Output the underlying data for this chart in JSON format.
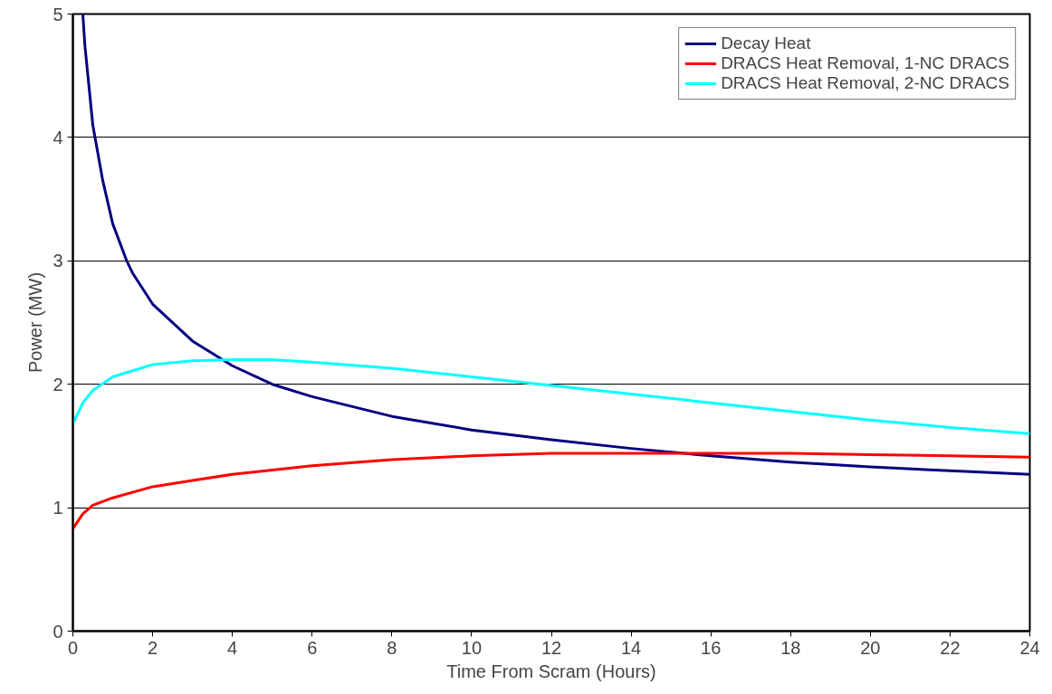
{
  "chart_data": {
    "type": "line",
    "xlabel": "Time From Scram (Hours)",
    "ylabel": "Power (MW)",
    "xlim": [
      0,
      24
    ],
    "xticks": [
      0,
      2,
      4,
      6,
      8,
      10,
      12,
      14,
      16,
      18,
      20,
      22,
      24
    ],
    "ylim": [
      0,
      5
    ],
    "yticks": [
      0,
      1,
      2,
      3,
      4,
      5
    ],
    "grid": "y",
    "legend": "top right",
    "marker": "none",
    "line_style": "solid",
    "series": [
      {
        "name": "Decay Heat",
        "color": "#000080",
        "x": [
          0.25,
          0.3,
          0.5,
          0.75,
          1,
          1.35,
          1.5,
          2,
          3,
          4,
          5,
          6,
          8,
          10,
          12,
          14,
          16,
          18,
          20,
          22,
          24
        ],
        "values": [
          5,
          4.75,
          4.1,
          3.65,
          3.3,
          3.0,
          2.9,
          2.65,
          2.35,
          2.15,
          2.0,
          1.9,
          1.74,
          1.63,
          1.55,
          1.48,
          1.42,
          1.37,
          1.33,
          1.3,
          1.27
        ]
      },
      {
        "name": "DRACS Heat Removal, 1-NC DRACS",
        "color": "#ff0000",
        "x": [
          0,
          0.25,
          0.5,
          1,
          2,
          3,
          4,
          6,
          8,
          10,
          12,
          14,
          16,
          18,
          20,
          22,
          24
        ],
        "values": [
          0.83,
          0.95,
          1.02,
          1.08,
          1.17,
          1.22,
          1.27,
          1.34,
          1.39,
          1.42,
          1.44,
          1.44,
          1.44,
          1.44,
          1.43,
          1.42,
          1.41
        ]
      },
      {
        "name": "DRACS Heat Removal, 2-NC DRACS",
        "color": "#00ffff",
        "x": [
          0,
          0.25,
          0.5,
          1,
          2,
          3,
          4,
          5,
          6,
          8,
          10,
          12,
          14,
          16,
          18,
          20,
          22,
          24
        ],
        "values": [
          1.68,
          1.85,
          1.95,
          2.06,
          2.16,
          2.19,
          2.2,
          2.2,
          2.18,
          2.13,
          2.06,
          1.99,
          1.92,
          1.85,
          1.78,
          1.71,
          1.65,
          1.6
        ]
      }
    ]
  }
}
